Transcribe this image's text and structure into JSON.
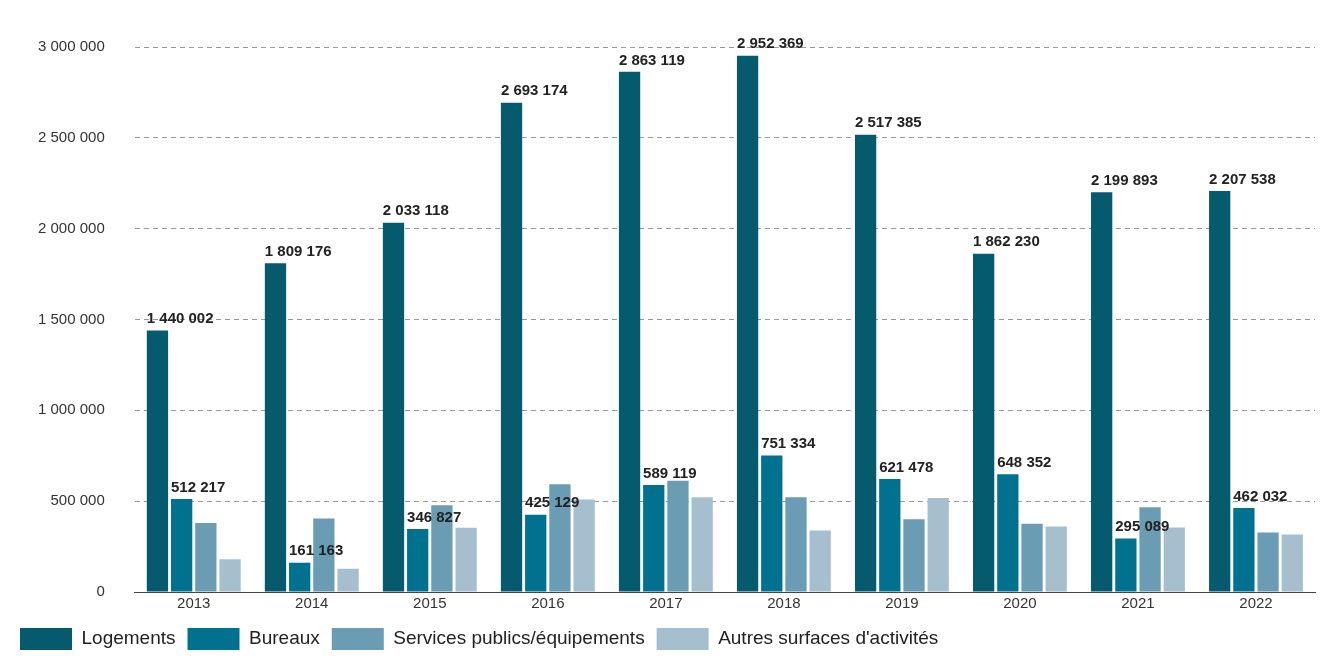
{
  "chart_data": {
    "type": "bar",
    "categories": [
      "2013",
      "2014",
      "2015",
      "2016",
      "2017",
      "2018",
      "2019",
      "2020",
      "2021",
      "2022"
    ],
    "series": [
      {
        "name": "Logements",
        "color": "#055a6e",
        "values": [
          1440002,
          1809176,
          2033118,
          2693174,
          2863119,
          2952369,
          2517385,
          1862230,
          2199893,
          2207538
        ],
        "value_labels": [
          "1 440 002",
          "1 809 176",
          "2 033 118",
          "2 693 174",
          "2 863 119",
          "2 952 369",
          "2 517 385",
          "1 862 230",
          "2 199 893",
          "2 207 538"
        ]
      },
      {
        "name": "Bureaux",
        "color": "#00728f",
        "values": [
          512217,
          161163,
          346827,
          425129,
          589119,
          751334,
          621478,
          648352,
          295089,
          462032
        ],
        "value_labels": [
          "512 217",
          "161 163",
          "346 827",
          "425 129",
          "589 119",
          "751 334",
          "621 478",
          "648 352",
          "295 089",
          "462 032"
        ]
      },
      {
        "name": "Services publics/équipements",
        "color": "#6a9db4",
        "values": [
          380000,
          405000,
          478000,
          593000,
          613000,
          521000,
          401000,
          376000,
          466000,
          328000
        ]
      },
      {
        "name": "Autres surfaces d'activités",
        "color": "#a6bfce",
        "values": [
          180000,
          128000,
          354000,
          509000,
          521000,
          339000,
          517000,
          360000,
          355000,
          316000
        ]
      }
    ],
    "ylim": [
      0,
      3000000
    ],
    "yticks": [
      {
        "value": 0,
        "label": "0"
      },
      {
        "value": 500000,
        "label": "500 000"
      },
      {
        "value": 1000000,
        "label": "1 000 000"
      },
      {
        "value": 1500000,
        "label": "1 500 000"
      },
      {
        "value": 2000000,
        "label": "2 000 000"
      },
      {
        "value": 2500000,
        "label": "2 500 000"
      },
      {
        "value": 3000000,
        "label": "3 000 000"
      }
    ],
    "grid": "y",
    "legend": "bottom left"
  }
}
